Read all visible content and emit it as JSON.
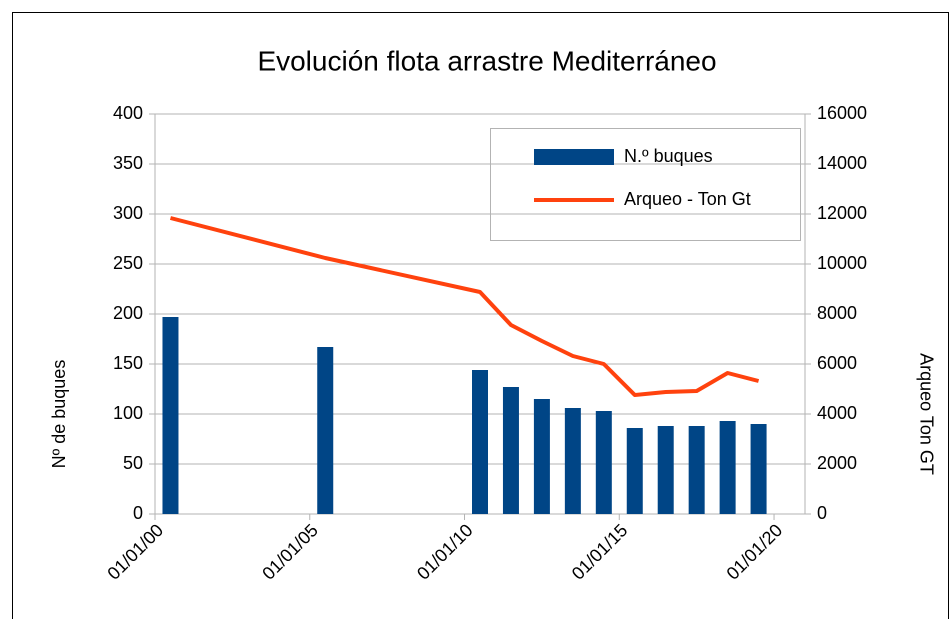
{
  "chart_data": {
    "type": "bar_line",
    "title": "Evolución flota arrastre Mediterráneo",
    "y_label": "Nº de buques",
    "y2_label": "Arqueo Ton GT",
    "x": [
      2000.5,
      2005.5,
      2010.5,
      2011.5,
      2012.5,
      2013.5,
      2014.5,
      2015.5,
      2016.5,
      2017.5,
      2018.5,
      2019.5
    ],
    "xlim": [
      2000,
      2021
    ],
    "xticks": [
      {
        "value": 2000,
        "label": "01/01/00"
      },
      {
        "value": 2005,
        "label": "01/01/05"
      },
      {
        "value": 2010,
        "label": "01/01/10"
      },
      {
        "value": 2015,
        "label": "01/01/15"
      },
      {
        "value": 2020,
        "label": "01/01/20"
      }
    ],
    "ylim": [
      0,
      400
    ],
    "yticks": [
      0,
      50,
      100,
      150,
      200,
      250,
      300,
      350,
      400
    ],
    "y2lim": [
      0,
      16000
    ],
    "y2ticks": [
      0,
      2000,
      4000,
      6000,
      8000,
      10000,
      12000,
      14000,
      16000
    ],
    "grid": true,
    "legend": "top-right",
    "series": [
      {
        "name": "N.º buques",
        "type": "bar",
        "color": "#004586",
        "values": [
          197,
          167,
          144,
          127,
          115,
          106,
          103,
          86,
          88,
          88,
          93,
          90
        ]
      },
      {
        "name": "Arqueo - Ton Gt",
        "type": "line",
        "axis": "y2",
        "color": "#ff420e",
        "values": [
          11840,
          10240,
          8880,
          7560,
          6920,
          6320,
          6000,
          4760,
          4880,
          4920,
          5640,
          5320
        ]
      }
    ]
  }
}
